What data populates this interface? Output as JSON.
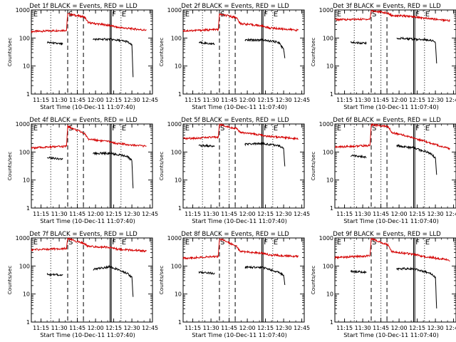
{
  "chart_data": [
    {
      "type": "line",
      "title": "Det 1f BLACK = Events, RED = LLD",
      "xlabel": "Start Time (10-Dec-11 11:07:40)",
      "ylabel": "Counts/sec",
      "ylog": true,
      "ylim": [
        1,
        1000
      ],
      "xticks": [
        "11:15",
        "11:30",
        "11:45",
        "12:00",
        "12:15",
        "12:30",
        "12:45"
      ],
      "yticks": [
        "1",
        "10",
        "100",
        "1000"
      ],
      "markers": [
        "E",
        "S",
        "F",
        "E"
      ],
      "series": [
        {
          "name": "LLD",
          "color": "#d40000",
          "values": [
            {
              "x": "11:07",
              "y": 170
            },
            {
              "x": "11:36",
              "y": 190
            },
            {
              "x": "11:37",
              "y": 720
            },
            {
              "x": "11:51",
              "y": 560
            },
            {
              "x": "11:54",
              "y": 350
            },
            {
              "x": "12:12",
              "y": 280
            },
            {
              "x": "12:18",
              "y": 240
            },
            {
              "x": "12:42",
              "y": 190
            }
          ]
        },
        {
          "name": "Events",
          "color": "#000000",
          "values": [
            {
              "x": "11:20",
              "y": 70
            },
            {
              "x": "11:33",
              "y": 60
            },
            {
              "x": "11:58",
              "y": 90
            },
            {
              "x": "12:12",
              "y": 90
            },
            {
              "x": "12:26",
              "y": 75
            },
            {
              "x": "12:30",
              "y": 55
            },
            {
              "x": "12:31",
              "y": 4
            }
          ]
        }
      ]
    },
    {
      "type": "line",
      "title": "Det 2f BLACK = Events, RED = LLD",
      "xlabel": "Start Time (10-Dec-11 11:07:40)",
      "ylabel": "Counts/sec",
      "ylog": true,
      "ylim": [
        1,
        1000
      ],
      "xticks": [
        "11:15",
        "11:30",
        "11:45",
        "12:00",
        "12:15",
        "12:30",
        "12:45"
      ],
      "yticks": [
        "1",
        "10",
        "100",
        "1000"
      ],
      "markers": [
        "E",
        "S",
        "F",
        "E"
      ],
      "series": [
        {
          "name": "LLD",
          "color": "#d40000",
          "values": [
            {
              "x": "11:07",
              "y": 180
            },
            {
              "x": "11:36",
              "y": 200
            },
            {
              "x": "11:37",
              "y": 700
            },
            {
              "x": "11:51",
              "y": 540
            },
            {
              "x": "11:54",
              "y": 330
            },
            {
              "x": "12:12",
              "y": 270
            },
            {
              "x": "12:18",
              "y": 230
            },
            {
              "x": "12:42",
              "y": 190
            }
          ]
        },
        {
          "name": "Events",
          "color": "#000000",
          "values": [
            {
              "x": "11:20",
              "y": 70
            },
            {
              "x": "11:33",
              "y": 60
            },
            {
              "x": "11:58",
              "y": 85
            },
            {
              "x": "12:12",
              "y": 85
            },
            {
              "x": "12:26",
              "y": 70
            },
            {
              "x": "12:30",
              "y": 40
            },
            {
              "x": "12:31",
              "y": 20
            }
          ]
        }
      ]
    },
    {
      "type": "line",
      "title": "Det 3f BLACK = Events, RED = LLD",
      "xlabel": "Start Time (10-Dec-11 11:07:40)",
      "ylabel": "Counts/sec",
      "ylog": true,
      "ylim": [
        1,
        1000
      ],
      "xticks": [
        "11:15",
        "11:30",
        "11:45",
        "12:00",
        "12:15",
        "12:30",
        "12:45"
      ],
      "yticks": [
        "1",
        "10",
        "100",
        "1000"
      ],
      "markers": [
        "E",
        "S",
        "F",
        "E"
      ],
      "series": [
        {
          "name": "LLD",
          "color": "#d40000",
          "values": [
            {
              "x": "11:07",
              "y": 450
            },
            {
              "x": "11:36",
              "y": 470
            },
            {
              "x": "11:37",
              "y": 950
            },
            {
              "x": "11:51",
              "y": 760
            },
            {
              "x": "11:54",
              "y": 640
            },
            {
              "x": "12:12",
              "y": 580
            },
            {
              "x": "12:18",
              "y": 520
            },
            {
              "x": "12:42",
              "y": 420
            }
          ]
        },
        {
          "name": "Events",
          "color": "#000000",
          "values": [
            {
              "x": "11:20",
              "y": 70
            },
            {
              "x": "11:33",
              "y": 65
            },
            {
              "x": "11:58",
              "y": 100
            },
            {
              "x": "12:12",
              "y": 90
            },
            {
              "x": "12:26",
              "y": 85
            },
            {
              "x": "12:30",
              "y": 70
            },
            {
              "x": "12:31",
              "y": 12
            }
          ]
        }
      ]
    },
    {
      "type": "line",
      "title": "Det 4f BLACK = Events, RED = LLD",
      "xlabel": "Start Time (10-Dec-11 11:07:40)",
      "ylabel": "Counts/sec",
      "ylog": true,
      "ylim": [
        1,
        1000
      ],
      "xticks": [
        "11:15",
        "11:30",
        "11:45",
        "12:00",
        "12:15",
        "12:30",
        "12:45"
      ],
      "yticks": [
        "1",
        "10",
        "100",
        "1000"
      ],
      "markers": [
        "E",
        "S",
        "F",
        "E"
      ],
      "series": [
        {
          "name": "LLD",
          "color": "#d40000",
          "values": [
            {
              "x": "11:07",
              "y": 140
            },
            {
              "x": "11:36",
              "y": 160
            },
            {
              "x": "11:37",
              "y": 820
            },
            {
              "x": "11:51",
              "y": 460
            },
            {
              "x": "11:54",
              "y": 290
            },
            {
              "x": "12:12",
              "y": 230
            },
            {
              "x": "12:18",
              "y": 200
            },
            {
              "x": "12:42",
              "y": 160
            }
          ]
        },
        {
          "name": "Events",
          "color": "#000000",
          "values": [
            {
              "x": "11:20",
              "y": 65
            },
            {
              "x": "11:33",
              "y": 55
            },
            {
              "x": "11:58",
              "y": 90
            },
            {
              "x": "12:12",
              "y": 90
            },
            {
              "x": "12:26",
              "y": 70
            },
            {
              "x": "12:30",
              "y": 50
            },
            {
              "x": "12:31",
              "y": 5
            }
          ]
        }
      ]
    },
    {
      "type": "line",
      "title": "Det 5f BLACK = Events, RED = LLD",
      "xlabel": "Start Time (10-Dec-11 11:07:40)",
      "ylabel": "Counts/sec",
      "ylog": true,
      "ylim": [
        1,
        1000
      ],
      "xticks": [
        "11:15",
        "11:30",
        "11:45",
        "12:00",
        "12:15",
        "12:30",
        "12:45"
      ],
      "yticks": [
        "1",
        "10",
        "100",
        "1000"
      ],
      "markers": [
        "E",
        "S",
        "F",
        "E"
      ],
      "series": [
        {
          "name": "LLD",
          "color": "#d40000",
          "values": [
            {
              "x": "11:07",
              "y": 300
            },
            {
              "x": "11:36",
              "y": 340
            },
            {
              "x": "11:37",
              "y": 950
            },
            {
              "x": "11:51",
              "y": 680
            },
            {
              "x": "11:54",
              "y": 500
            },
            {
              "x": "12:12",
              "y": 400
            },
            {
              "x": "12:18",
              "y": 360
            },
            {
              "x": "12:42",
              "y": 300
            }
          ]
        },
        {
          "name": "Events",
          "color": "#000000",
          "values": [
            {
              "x": "11:20",
              "y": 170
            },
            {
              "x": "11:33",
              "y": 160
            },
            {
              "x": "11:58",
              "y": 190
            },
            {
              "x": "12:12",
              "y": 200
            },
            {
              "x": "12:26",
              "y": 170
            },
            {
              "x": "12:30",
              "y": 130
            },
            {
              "x": "12:31",
              "y": 30
            }
          ]
        }
      ]
    },
    {
      "type": "line",
      "title": "Det 6f BLACK = Events, RED = LLD",
      "xlabel": "Start Time (10-Dec-11 11:07:40)",
      "ylabel": "Counts/sec",
      "ylog": true,
      "ylim": [
        1,
        1000
      ],
      "xticks": [
        "11:15",
        "11:30",
        "11:45",
        "12:00",
        "12:15",
        "12:30",
        "12:45"
      ],
      "yticks": [
        "1",
        "10",
        "100",
        "1000"
      ],
      "markers": [
        "E",
        "S",
        "F",
        "E"
      ],
      "series": [
        {
          "name": "LLD",
          "color": "#d40000",
          "values": [
            {
              "x": "11:07",
              "y": 150
            },
            {
              "x": "11:36",
              "y": 170
            },
            {
              "x": "11:37",
              "y": 950
            },
            {
              "x": "11:51",
              "y": 800
            },
            {
              "x": "11:54",
              "y": 500
            },
            {
              "x": "12:12",
              "y": 320
            },
            {
              "x": "12:18",
              "y": 260
            },
            {
              "x": "12:42",
              "y": 130
            }
          ]
        },
        {
          "name": "Events",
          "color": "#000000",
          "values": [
            {
              "x": "11:20",
              "y": 75
            },
            {
              "x": "11:33",
              "y": 65
            },
            {
              "x": "11:58",
              "y": 170
            },
            {
              "x": "12:12",
              "y": 140
            },
            {
              "x": "12:26",
              "y": 90
            },
            {
              "x": "12:30",
              "y": 60
            },
            {
              "x": "12:31",
              "y": 15
            }
          ]
        }
      ]
    },
    {
      "type": "line",
      "title": "Det 7f BLACK = Events, RED = LLD",
      "xlabel": "Start Time (10-Dec-11 11:07:40)",
      "ylabel": "Counts/sec",
      "ylog": true,
      "ylim": [
        1,
        1000
      ],
      "xticks": [
        "11:15",
        "11:30",
        "11:45",
        "12:00",
        "12:15",
        "12:30",
        "12:45"
      ],
      "yticks": [
        "1",
        "10",
        "100",
        "1000"
      ],
      "markers": [
        "E",
        "S",
        "F",
        "E"
      ],
      "series": [
        {
          "name": "LLD",
          "color": "#d40000",
          "values": [
            {
              "x": "11:07",
              "y": 380
            },
            {
              "x": "11:36",
              "y": 420
            },
            {
              "x": "11:37",
              "y": 950
            },
            {
              "x": "11:51",
              "y": 620
            },
            {
              "x": "11:54",
              "y": 500
            },
            {
              "x": "12:12",
              "y": 460
            },
            {
              "x": "12:18",
              "y": 400
            },
            {
              "x": "12:42",
              "y": 340
            }
          ]
        },
        {
          "name": "Events",
          "color": "#000000",
          "values": [
            {
              "x": "11:20",
              "y": 50
            },
            {
              "x": "11:33",
              "y": 48
            },
            {
              "x": "11:58",
              "y": 75
            },
            {
              "x": "12:12",
              "y": 95
            },
            {
              "x": "12:26",
              "y": 55
            },
            {
              "x": "12:30",
              "y": 40
            },
            {
              "x": "12:31",
              "y": 8
            }
          ]
        }
      ]
    },
    {
      "type": "line",
      "title": "Det 8f BLACK = Events, RED = LLD",
      "xlabel": "Start Time (10-Dec-11 11:07:40)",
      "ylabel": "Counts/sec",
      "ylog": true,
      "ylim": [
        1,
        1000
      ],
      "xticks": [
        "11:15",
        "11:30",
        "11:45",
        "12:00",
        "12:15",
        "12:30",
        "12:45"
      ],
      "yticks": [
        "1",
        "10",
        "100",
        "1000"
      ],
      "markers": [
        "E",
        "S",
        "F",
        "E"
      ],
      "series": [
        {
          "name": "LLD",
          "color": "#d40000",
          "values": [
            {
              "x": "11:07",
              "y": 190
            },
            {
              "x": "11:36",
              "y": 220
            },
            {
              "x": "11:37",
              "y": 950
            },
            {
              "x": "11:51",
              "y": 520
            },
            {
              "x": "11:54",
              "y": 330
            },
            {
              "x": "12:12",
              "y": 290
            },
            {
              "x": "12:18",
              "y": 250
            },
            {
              "x": "12:42",
              "y": 220
            }
          ]
        },
        {
          "name": "Events",
          "color": "#000000",
          "values": [
            {
              "x": "11:20",
              "y": 60
            },
            {
              "x": "11:33",
              "y": 55
            },
            {
              "x": "11:58",
              "y": 90
            },
            {
              "x": "12:12",
              "y": 90
            },
            {
              "x": "12:26",
              "y": 60
            },
            {
              "x": "12:30",
              "y": 45
            },
            {
              "x": "12:31",
              "y": 20
            }
          ]
        }
      ]
    },
    {
      "type": "line",
      "title": "Det 9f BLACK = Events, RED = LLD",
      "xlabel": "Start Time (10-Dec-11 11:07:40)",
      "ylabel": "Counts/sec",
      "ylog": true,
      "ylim": [
        1,
        1000
      ],
      "xticks": [
        "11:15",
        "11:30",
        "11:45",
        "12:00",
        "12:15",
        "12:30",
        "12:45"
      ],
      "yticks": [
        "1",
        "10",
        "100",
        "1000"
      ],
      "markers": [
        "E",
        "S",
        "F",
        "E"
      ],
      "series": [
        {
          "name": "LLD",
          "color": "#d40000",
          "values": [
            {
              "x": "11:07",
              "y": 200
            },
            {
              "x": "11:36",
              "y": 230
            },
            {
              "x": "11:37",
              "y": 950
            },
            {
              "x": "11:51",
              "y": 560
            },
            {
              "x": "11:54",
              "y": 330
            },
            {
              "x": "12:12",
              "y": 260
            },
            {
              "x": "12:18",
              "y": 230
            },
            {
              "x": "12:42",
              "y": 160
            }
          ]
        },
        {
          "name": "Events",
          "color": "#000000",
          "values": [
            {
              "x": "11:20",
              "y": 65
            },
            {
              "x": "11:33",
              "y": 60
            },
            {
              "x": "11:58",
              "y": 80
            },
            {
              "x": "12:12",
              "y": 80
            },
            {
              "x": "12:26",
              "y": 55
            },
            {
              "x": "12:30",
              "y": 40
            },
            {
              "x": "12:31",
              "y": 3
            }
          ]
        }
      ]
    }
  ]
}
